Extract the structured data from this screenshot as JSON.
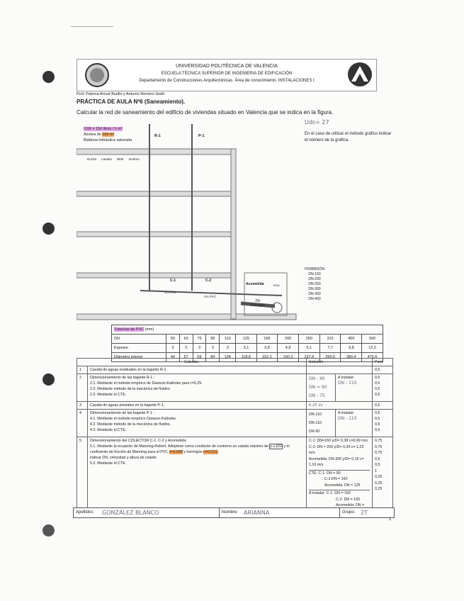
{
  "header": {
    "line1": "UNIVERSIDAD POLITÉCNICA DE VALENCIA",
    "line2": "ESCUELA TÉCNICA SUPERIOR DE INGENIERIA DE EDIFICACIÓN",
    "line3": "Departamento de Construcciones Arquitectónicas.   Área de conocimiento: INSTALACIONES I"
  },
  "authors": "Prof. Paloma Arnué Burillo y Antonio Romero Sedó",
  "title": "PRÁCTICA DE AULA Nº6  (Saneamiento).",
  "subtitle": "Calcular la red de saneamiento del edificio de viviendas situado en Valencia que se indica en la figura.",
  "figure": {
    "rain": "I10/t = 150 litros / h m²",
    "roof_prefix": "Azotea  de",
    "roof_area": "150 m²",
    "roof_finish": "Baldosa hidráulica saturada",
    "r1": "R-1",
    "p1": "P-1",
    "fixtures": [
      "Ducha",
      "Lavabo",
      "Bide",
      "Inodoro"
    ],
    "c1": "C-1",
    "c2": "C-2",
    "pvc_slope": "1% PVC",
    "acometida": "Acometida",
    "rga": "RGA",
    "slope2": "2%",
    "hormigon": "Hormigón"
  },
  "note_hand": "Uds= 27",
  "note": "En el caso de utilizar el método gráfico indicar el número de la gráfica.",
  "hormigon_list": [
    "HORMIGÓN",
    "DN-150",
    "DN-200",
    "DN-250",
    "DN-300",
    "DN-350",
    "DN-400"
  ],
  "pvc_table": {
    "title": "Tuberías de PVC",
    "unit": "(mm)",
    "rows": [
      {
        "label": "DN",
        "values": [
          "50",
          "63",
          "75",
          "90",
          "110",
          "125",
          "160",
          "200",
          "250",
          "315",
          "400",
          "500"
        ]
      },
      {
        "label": "Espesor",
        "values": [
          "3",
          "3",
          "3",
          "3",
          "3",
          "3,1",
          "3,9",
          "4,9",
          "6,1",
          "7,7",
          "9,8",
          "12,2"
        ]
      },
      {
        "label": "Diámetro interior",
        "values": [
          "44",
          "57",
          "69",
          "84",
          "104",
          "118,8",
          "152,2",
          "190,2",
          "237,8",
          "299,6",
          "380,4",
          "475,6"
        ]
      }
    ]
  },
  "main": {
    "h_calc": "Calcular:",
    "h_sol": "Solución",
    "h_punt": "Punt.",
    "q1": {
      "n": "1",
      "text": "Caudal de aguas residuales en la bajante R-1.",
      "p": "0,5"
    },
    "q2": {
      "n": "2",
      "t0": "Dimensionamiento de las bajante R-1 :",
      "t1": "2.1. Mediante el método empírico de Dawson-Kalinske para r=0,29.",
      "t2": "2.2. Mediante método de la mecánica de fluidos.",
      "t3": "2.3. Mediante el CTE.",
      "s1": "DN - 90",
      "s2": "DN = 90",
      "s3": "DN - 75",
      "inst": "A instalar:",
      "inst_v": "DN - 110",
      "p": [
        "0,5",
        "0,5",
        "0,5",
        "0,5"
      ]
    },
    "q3": {
      "n": "3",
      "text": "Caudal de aguas pluviales en la bajante P-1.",
      "s": "6,25 l/s",
      "p": "0,5"
    },
    "q4": {
      "n": "4",
      "t0": "Dimensionamiento de las bajante P-1 :",
      "t1": "4.1. Mediante el método empírico Dawson-Kalinske.",
      "t2": "4.2. Mediante método de la mecánica de fluidos.",
      "t3": "4.3. Mediante el CTE.",
      "s1": "DN-110",
      "s2": "DN-110",
      "s3": "DN-90",
      "inst": "A instalar:",
      "inst_v": "DN - 110",
      "p": [
        "0,5",
        "0,5",
        "0,5",
        "0,5"
      ]
    },
    "q5": {
      "n": "5",
      "t0": "Dimensionamiento del  COLECTOR C-1, C-2 y Acometida:",
      "t1": "5.1. Mediante la ecuación de Manning-Robert. Adóptese como condición de contorno un calado máximo de",
      "box": "y ≤ D/2",
      "t1b": "y el coeficiente de fricción de Manning para el PVC",
      "n_pvc": "n=0,009",
      "t1c": "y hormigón",
      "n_h": "n=0,013.",
      "t2": "Indicar DN, velocidad y altura de calado.",
      "t3": "5.2. Mediante el CTE.",
      "s": [
        "C-1: DN=160      y/D= 0,38   c=0,99 m/s",
        "C-2: DN = 200      y/D= 0,34   c= 1,23 m/s",
        "Acometida: DN-300 y/D= 0,19  c= 1,16 m/s"
      ],
      "cte": [
        "CTE:   C-1: DN = 90",
        "C-2:DN = 160",
        "Acometida:  DN = 125"
      ],
      "inst": [
        "A instalar:  C-1: DN = 160",
        "C-2: DN = 160",
        "Acometida: DN = 300"
      ],
      "p": [
        "0,75",
        "0,75",
        "0,75",
        "0,5",
        "0,5",
        "1",
        "0,25",
        "0,25",
        "0,25"
      ]
    }
  },
  "footer": {
    "apellidos_label": "Apellidos:",
    "apellidos": "GONZÁLEZ   BLANCO",
    "nombre_label": "Nombre:",
    "nombre": "ARIANNA",
    "grupo_label": "Grupo:",
    "grupo": "2T"
  },
  "page_number": "1"
}
